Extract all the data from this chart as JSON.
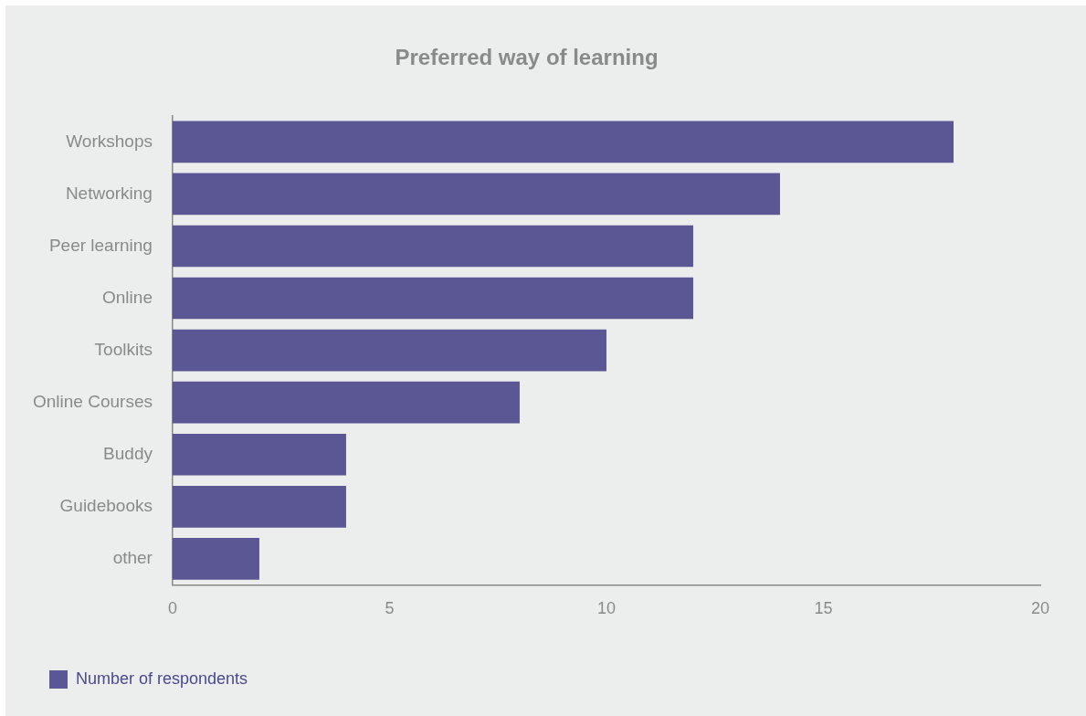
{
  "chart_data": {
    "type": "bar",
    "orientation": "horizontal",
    "title": "Preferred way of learning",
    "categories": [
      "Workshops",
      "Networking",
      "Peer learning",
      "Online",
      "Toolkits",
      "Online Courses",
      "Buddy",
      "Guidebooks",
      "other"
    ],
    "series": [
      {
        "name": "Number of respondents",
        "color": "#5b5794",
        "values": [
          18,
          14,
          12,
          12,
          10,
          8,
          4,
          4,
          2
        ]
      }
    ],
    "xlim": [
      0,
      20
    ],
    "xticks": [
      0,
      5,
      10,
      15,
      20
    ],
    "grid": false,
    "legend": "bottom left"
  }
}
